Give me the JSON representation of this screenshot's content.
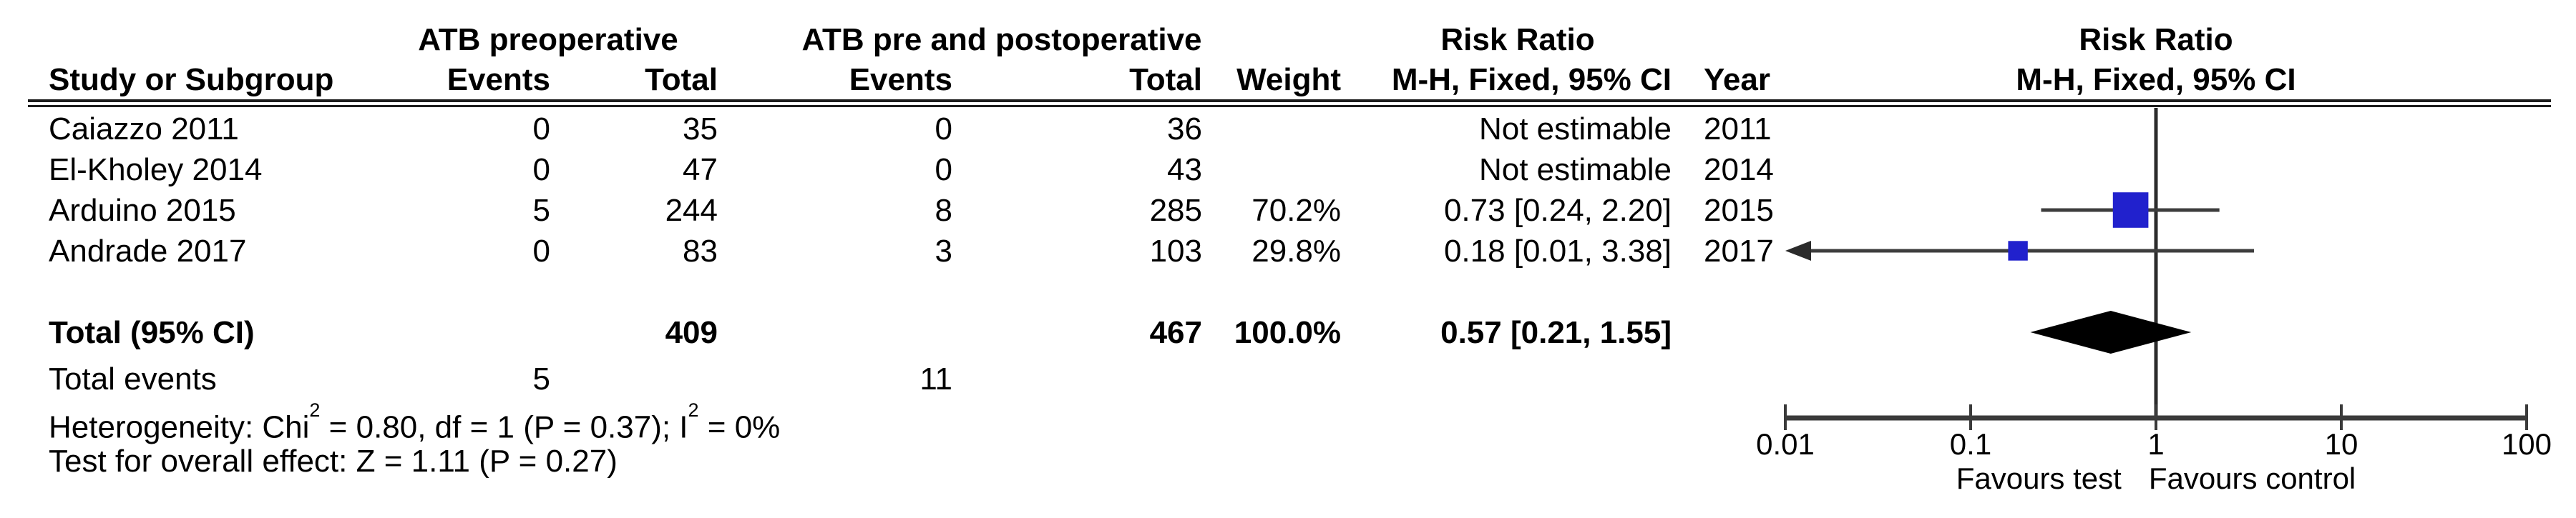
{
  "table": {
    "group1_header": "ATB preoperative",
    "group2_header": "ATB pre and postoperative",
    "risk_ratio_header": "Risk Ratio",
    "risk_ratio_subheader": "M-H, Fixed, 95% CI",
    "columns": {
      "study": "Study or Subgroup",
      "events1": "Events",
      "total1": "Total",
      "events2": "Events",
      "total2": "Total",
      "weight": "Weight",
      "estimate": "M-H, Fixed, 95% CI",
      "year": "Year"
    },
    "rows": [
      {
        "study": "Caiazzo 2011",
        "events1": "0",
        "total1": "35",
        "events2": "0",
        "total2": "36",
        "weight": "",
        "estimate": "Not estimable",
        "year": "2011"
      },
      {
        "study": "El-Kholey 2014",
        "events1": "0",
        "total1": "47",
        "events2": "0",
        "total2": "43",
        "weight": "",
        "estimate": "Not estimable",
        "year": "2014"
      },
      {
        "study": "Arduino 2015",
        "events1": "5",
        "total1": "244",
        "events2": "8",
        "total2": "285",
        "weight": "70.2%",
        "estimate": "0.73 [0.24, 2.20]",
        "year": "2015"
      },
      {
        "study": "Andrade 2017",
        "events1": "0",
        "total1": "83",
        "events2": "3",
        "total2": "103",
        "weight": "29.8%",
        "estimate": "0.18 [0.01, 3.38]",
        "year": "2017"
      }
    ],
    "total_row": {
      "label": "Total (95% CI)",
      "total1": "409",
      "total2": "467",
      "weight": "100.0%",
      "estimate": "0.57 [0.21, 1.55]"
    },
    "total_events": {
      "label": "Total events",
      "events1": "5",
      "events2": "11"
    },
    "heterogeneity": {
      "p1": "Heterogeneity: Chi",
      "sup1": "2",
      "p2": " = 0.80, df = 1 (P = 0.37); I",
      "sup2": "2",
      "p3": " = 0%"
    },
    "overall_effect": "Test for overall effect: Z = 1.11 (P = 0.27)"
  },
  "chart_data": {
    "type": "scatter",
    "subtype": "forest-plot",
    "title": "Risk Ratio",
    "subtitle": "M-H, Fixed, 95% CI",
    "x_scale": "log",
    "xlim": [
      0.01,
      100
    ],
    "x_ticks": [
      0.01,
      0.1,
      1,
      10,
      100
    ],
    "x_tick_labels": [
      "0.01",
      "0.1",
      "1",
      "10",
      "100"
    ],
    "x_axis_labels": [
      "Favours test",
      "Favours control"
    ],
    "grid": false,
    "studies": [
      {
        "name": "Caiazzo 2011",
        "year": 2011,
        "rr": null,
        "ci_low": null,
        "ci_high": null,
        "weight_pct": null,
        "estimable": false
      },
      {
        "name": "El-Kholey 2014",
        "year": 2014,
        "rr": null,
        "ci_low": null,
        "ci_high": null,
        "weight_pct": null,
        "estimable": false
      },
      {
        "name": "Arduino 2015",
        "year": 2015,
        "rr": 0.73,
        "ci_low": 0.24,
        "ci_high": 2.2,
        "weight_pct": 70.2,
        "estimable": true
      },
      {
        "name": "Andrade 2017",
        "year": 2017,
        "rr": 0.18,
        "ci_low": 0.01,
        "ci_high": 3.38,
        "weight_pct": 29.8,
        "estimable": true
      }
    ],
    "overall": {
      "label": "Total (95% CI)",
      "rr": 0.57,
      "ci_low": 0.21,
      "ci_high": 1.55,
      "weight_pct": 100.0
    },
    "colors": {
      "marker": "#2121cd",
      "diamond": "#000000",
      "ci_line": "#3d3d3d",
      "axis": "#3a3a3a",
      "no_effect_line": "#2b2b2b"
    }
  }
}
